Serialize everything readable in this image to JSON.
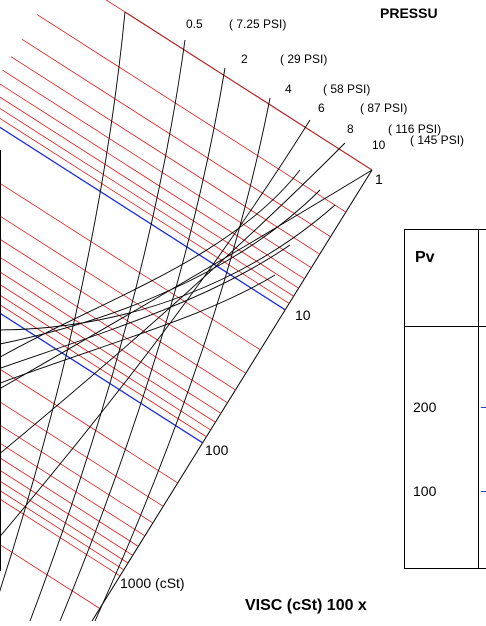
{
  "title_partial": "PRESSU",
  "pressure_labels": [
    {
      "bar": "0.5",
      "psi": "( 7.25 PSI)"
    },
    {
      "bar": "2",
      "psi": "( 29 PSI)"
    },
    {
      "bar": "4",
      "psi": "( 58 PSI)"
    },
    {
      "bar": "6",
      "psi": "( 87 PSI)"
    },
    {
      "bar": "8",
      "psi": "( 116 PSI)"
    },
    {
      "bar": "10",
      "psi": "( 145 PSI)"
    }
  ],
  "viscosity_labels": [
    "1",
    "10",
    "100",
    "1000 (cSt)"
  ],
  "bottom_label": "VISC (cSt)  100 x",
  "pv_table": {
    "header": "Pv",
    "rows": [
      "200",
      "100"
    ]
  },
  "colors": {
    "grid_red": "#e01818",
    "decade_blue": "#1a2fd6",
    "curve_black": "#000000"
  }
}
